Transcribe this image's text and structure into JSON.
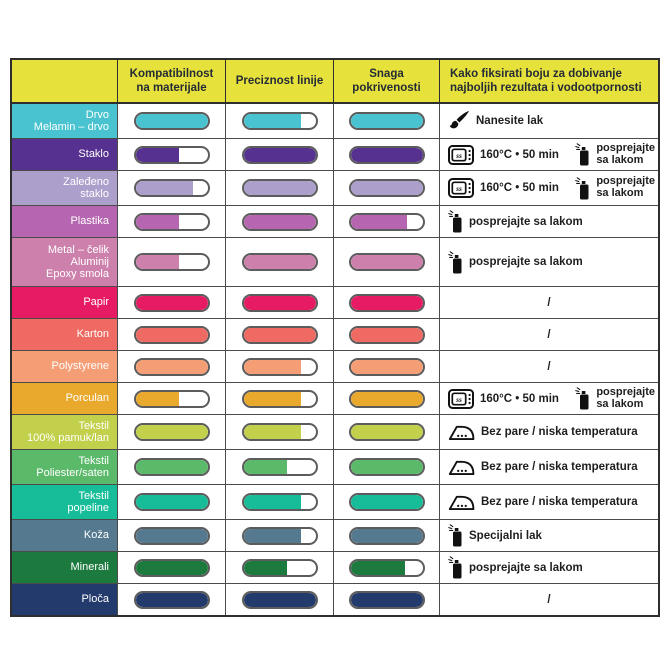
{
  "header": {
    "material": "",
    "compatibility": "Kompatibilnost na materijale",
    "precision": "Preciznost linije",
    "coverage": "Snaga pokrivenosti",
    "fixing": "Kako fiksirati boju za dobivanje najboljih rezultata i vodootpornosti",
    "bg": "#e7e23b",
    "text_color": "#242b36"
  },
  "rows": [
    {
      "label": [
        "Drvo",
        "Melamin – drvo"
      ],
      "color": "#49c3cf",
      "ratings": {
        "compatibility": 100,
        "precision": 80,
        "coverage": 100
      },
      "fixing": [
        {
          "icon": "brush",
          "text": "Nanesite lak"
        }
      ]
    },
    {
      "label": [
        "Staklo"
      ],
      "color": "#56318f",
      "ratings": {
        "compatibility": 60,
        "precision": 100,
        "coverage": 100
      },
      "fixing": [
        {
          "icon": "oven",
          "text": "160°C • 50 min"
        },
        {
          "icon": "spray",
          "text": "posprejajte",
          "text2": "sa lakom"
        }
      ]
    },
    {
      "label": [
        "Zaleđeno",
        "staklo"
      ],
      "color": "#ad9fcc",
      "ratings": {
        "compatibility": 80,
        "precision": 100,
        "coverage": 100
      },
      "fixing": [
        {
          "icon": "oven",
          "text": "160°C • 50 min"
        },
        {
          "icon": "spray",
          "text": "posprejajte",
          "text2": "sa lakom"
        }
      ]
    },
    {
      "label": [
        "Plastika"
      ],
      "color": "#b666b0",
      "ratings": {
        "compatibility": 60,
        "precision": 100,
        "coverage": 78
      },
      "fixing": [
        {
          "icon": "spray",
          "text": "posprejajte sa lakom"
        }
      ]
    },
    {
      "label": [
        "Metal – čelik",
        "Aluminij",
        "Epoxy smola"
      ],
      "color": "#cd80ab",
      "ratings": {
        "compatibility": 60,
        "precision": 100,
        "coverage": 100
      },
      "fixing": [
        {
          "icon": "spray",
          "text": "posprejajte sa lakom"
        }
      ]
    },
    {
      "label": [
        "Papir"
      ],
      "color": "#e71b63",
      "ratings": {
        "compatibility": 100,
        "precision": 100,
        "coverage": 100
      },
      "fixing": [
        {
          "text": "/"
        }
      ]
    },
    {
      "label": [
        "Karton"
      ],
      "color": "#ee6a62",
      "ratings": {
        "compatibility": 100,
        "precision": 100,
        "coverage": 100
      },
      "fixing": [
        {
          "text": "/"
        }
      ]
    },
    {
      "label": [
        "Polystyrene"
      ],
      "color": "#f59e76",
      "ratings": {
        "compatibility": 100,
        "precision": 80,
        "coverage": 100
      },
      "fixing": [
        {
          "text": "/"
        }
      ]
    },
    {
      "label": [
        "Porculan"
      ],
      "color": "#e9a92c",
      "ratings": {
        "compatibility": 60,
        "precision": 80,
        "coverage": 100
      },
      "fixing": [
        {
          "icon": "oven",
          "text": "160°C • 50 min"
        },
        {
          "icon": "spray",
          "text": "posprejajte",
          "text2": "sa lakom"
        }
      ]
    },
    {
      "label": [
        "Tekstil",
        "100% pamuk/lan"
      ],
      "color": "#c2d04b",
      "ratings": {
        "compatibility": 100,
        "precision": 80,
        "coverage": 100
      },
      "fixing": [
        {
          "icon": "iron",
          "text": "Bez pare / niska temperatura"
        }
      ]
    },
    {
      "label": [
        "Tekstil",
        "Poliester/saten"
      ],
      "color": "#5bb96a",
      "ratings": {
        "compatibility": 100,
        "precision": 60,
        "coverage": 100
      },
      "fixing": [
        {
          "icon": "iron",
          "text": "Bez pare / niska temperatura"
        }
      ]
    },
    {
      "label": [
        "Tekstil",
        "popeline"
      ],
      "color": "#16bd98",
      "ratings": {
        "compatibility": 100,
        "precision": 80,
        "coverage": 100
      },
      "fixing": [
        {
          "icon": "iron",
          "text": "Bez pare / niska temperatura"
        }
      ]
    },
    {
      "label": [
        "Koža"
      ],
      "color": "#55798f",
      "ratings": {
        "compatibility": 100,
        "precision": 80,
        "coverage": 100
      },
      "fixing": [
        {
          "icon": "spray",
          "text": "Specijalni lak"
        }
      ]
    },
    {
      "label": [
        "Minerali"
      ],
      "color": "#1d7a3e",
      "ratings": {
        "compatibility": 100,
        "precision": 60,
        "coverage": 75
      },
      "fixing": [
        {
          "icon": "spray",
          "text": "posprejajte sa lakom"
        }
      ]
    },
    {
      "label": [
        "Ploča"
      ],
      "color": "#223a6c",
      "ratings": {
        "compatibility": 100,
        "precision": 100,
        "coverage": 100
      },
      "fixing": [
        {
          "text": "/"
        }
      ]
    }
  ],
  "chart_data": {
    "type": "table",
    "title": "Kompatibilnost boje po materijalima",
    "columns": [
      "Materijal",
      "Kompatibilnost na materijale",
      "Preciznost linije",
      "Snaga pokrivenosti",
      "Kako fiksirati boju za dobivanje najboljih rezultata i vodootpornosti"
    ],
    "value_scale": "capsule gauge fill percent, 0–100",
    "rows": [
      [
        "Drvo / Melamin – drvo",
        100,
        80,
        100,
        "Nanesite lak"
      ],
      [
        "Staklo",
        60,
        100,
        100,
        "160°C • 50 min + posprejajte sa lakom"
      ],
      [
        "Zaleđeno staklo",
        80,
        100,
        100,
        "160°C • 50 min + posprejajte sa lakom"
      ],
      [
        "Plastika",
        60,
        100,
        78,
        "posprejajte sa lakom"
      ],
      [
        "Metal – čelik / Aluminij / Epoxy smola",
        60,
        100,
        100,
        "posprejajte sa lakom"
      ],
      [
        "Papir",
        100,
        100,
        100,
        "/"
      ],
      [
        "Karton",
        100,
        100,
        100,
        "/"
      ],
      [
        "Polystyrene",
        100,
        80,
        100,
        "/"
      ],
      [
        "Porculan",
        60,
        80,
        100,
        "160°C • 50 min + posprejajte sa lakom"
      ],
      [
        "Tekstil 100% pamuk/lan",
        100,
        80,
        100,
        "Bez pare / niska temperatura"
      ],
      [
        "Tekstil Poliester/saten",
        100,
        60,
        100,
        "Bez pare / niska temperatura"
      ],
      [
        "Tekstil popeline",
        100,
        80,
        100,
        "Bez pare / niska temperatura"
      ],
      [
        "Koža",
        100,
        80,
        100,
        "Specijalni lak"
      ],
      [
        "Minerali",
        100,
        60,
        75,
        "posprejajte sa lakom"
      ],
      [
        "Ploča",
        100,
        100,
        100,
        "/"
      ]
    ]
  }
}
